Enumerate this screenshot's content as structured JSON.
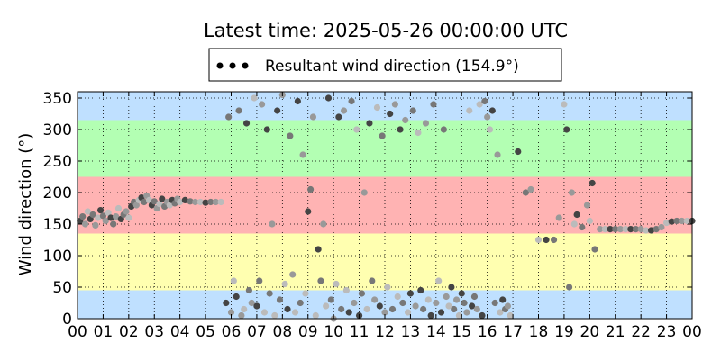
{
  "chart_data": {
    "type": "scatter",
    "title": "Latest time: 2025-05-26 00:00:00 UTC",
    "xlabel": "",
    "ylabel": "Wind direction (°)",
    "xlim": [
      0,
      24
    ],
    "ylim": [
      0,
      360
    ],
    "x_ticks": [
      "00",
      "01",
      "02",
      "03",
      "04",
      "05",
      "06",
      "07",
      "08",
      "09",
      "10",
      "11",
      "12",
      "13",
      "14",
      "15",
      "16",
      "17",
      "18",
      "19",
      "20",
      "21",
      "22",
      "23",
      "00"
    ],
    "y_ticks": [
      0,
      50,
      100,
      150,
      200,
      250,
      300,
      350
    ],
    "grid": true,
    "legend": {
      "position": "top-center",
      "entries": [
        "Resultant wind direction (154.9°)"
      ]
    },
    "background_bands": [
      {
        "from": 0,
        "to": 45,
        "color": "#bfe0ff"
      },
      {
        "from": 45,
        "to": 135,
        "color": "#ffffb0"
      },
      {
        "from": 135,
        "to": 225,
        "color": "#ffb3b3"
      },
      {
        "from": 225,
        "to": 315,
        "color": "#b3ffb3"
      },
      {
        "from": 315,
        "to": 360,
        "color": "#bfe0ff"
      }
    ],
    "series": [
      {
        "marker_colors": [
          "#444444",
          "#777777",
          "#999999",
          "#bbbbbb"
        ],
        "points": [
          [
            0.1,
            155
          ],
          [
            0.2,
            162
          ],
          [
            0.3,
            150
          ],
          [
            0.4,
            170
          ],
          [
            0.5,
            158
          ],
          [
            0.6,
            165
          ],
          [
            0.7,
            148
          ],
          [
            0.8,
            160
          ],
          [
            0.9,
            172
          ],
          [
            1.0,
            163
          ],
          [
            1.1,
            155
          ],
          [
            1.2,
            168
          ],
          [
            1.3,
            160
          ],
          [
            1.4,
            150
          ],
          [
            1.5,
            162
          ],
          [
            1.6,
            175
          ],
          [
            1.7,
            158
          ],
          [
            1.8,
            165
          ],
          [
            1.9,
            170
          ],
          [
            2.0,
            160
          ],
          [
            2.1,
            178
          ],
          [
            2.2,
            185
          ],
          [
            2.3,
            180
          ],
          [
            2.4,
            188
          ],
          [
            2.5,
            192
          ],
          [
            2.6,
            185
          ],
          [
            2.7,
            195
          ],
          [
            2.8,
            188
          ],
          [
            2.9,
            180
          ],
          [
            3.0,
            186
          ],
          [
            3.1,
            175
          ],
          [
            3.2,
            182
          ],
          [
            3.3,
            190
          ],
          [
            3.4,
            178
          ],
          [
            3.5,
            185
          ],
          [
            3.6,
            180
          ],
          [
            3.7,
            188
          ],
          [
            3.8,
            183
          ],
          [
            3.9,
            190
          ],
          [
            4.0,
            185
          ],
          [
            4.2,
            188
          ],
          [
            4.4,
            186
          ],
          [
            4.6,
            185
          ],
          [
            4.8,
            185
          ],
          [
            5.0,
            184
          ],
          [
            5.2,
            185
          ],
          [
            5.4,
            185
          ],
          [
            5.6,
            185
          ],
          [
            5.8,
            25
          ],
          [
            5.9,
            320
          ],
          [
            6.0,
            10
          ],
          [
            6.1,
            60
          ],
          [
            6.2,
            35
          ],
          [
            6.3,
            330
          ],
          [
            6.4,
            5
          ],
          [
            6.5,
            15
          ],
          [
            6.6,
            310
          ],
          [
            6.7,
            45
          ],
          [
            6.8,
            25
          ],
          [
            6.9,
            350
          ],
          [
            7.0,
            20
          ],
          [
            7.1,
            60
          ],
          [
            7.2,
            340
          ],
          [
            7.3,
            10
          ],
          [
            7.4,
            300
          ],
          [
            7.5,
            40
          ],
          [
            7.6,
            150
          ],
          [
            7.7,
            5
          ],
          [
            7.8,
            330
          ],
          [
            7.9,
            30
          ],
          [
            8.0,
            355
          ],
          [
            8.1,
            55
          ],
          [
            8.2,
            15
          ],
          [
            8.3,
            290
          ],
          [
            8.4,
            70
          ],
          [
            8.5,
            10
          ],
          [
            8.6,
            345
          ],
          [
            8.7,
            25
          ],
          [
            8.8,
            260
          ],
          [
            8.9,
            40
          ],
          [
            9.0,
            170
          ],
          [
            9.1,
            205
          ],
          [
            9.2,
            320
          ],
          [
            9.3,
            5
          ],
          [
            9.4,
            110
          ],
          [
            9.5,
            60
          ],
          [
            9.6,
            150
          ],
          [
            9.7,
            20
          ],
          [
            9.8,
            350
          ],
          [
            9.9,
            30
          ],
          [
            10.0,
            0
          ],
          [
            10.1,
            55
          ],
          [
            10.2,
            320
          ],
          [
            10.3,
            15
          ],
          [
            10.4,
            330
          ],
          [
            10.5,
            45
          ],
          [
            10.6,
            10
          ],
          [
            10.7,
            345
          ],
          [
            10.8,
            25
          ],
          [
            10.9,
            300
          ],
          [
            11.0,
            5
          ],
          [
            11.1,
            40
          ],
          [
            11.2,
            200
          ],
          [
            11.3,
            15
          ],
          [
            11.4,
            310
          ],
          [
            11.5,
            60
          ],
          [
            11.6,
            30
          ],
          [
            11.7,
            335
          ],
          [
            11.8,
            20
          ],
          [
            11.9,
            290
          ],
          [
            12.0,
            10
          ],
          [
            12.1,
            50
          ],
          [
            12.2,
            325
          ],
          [
            12.3,
            15
          ],
          [
            12.4,
            340
          ],
          [
            12.5,
            35
          ],
          [
            12.6,
            300
          ],
          [
            12.7,
            25
          ],
          [
            12.8,
            315
          ],
          [
            12.9,
            10
          ],
          [
            13.0,
            40
          ],
          [
            13.1,
            330
          ],
          [
            13.2,
            20
          ],
          [
            13.3,
            295
          ],
          [
            13.4,
            45
          ],
          [
            13.5,
            15
          ],
          [
            13.6,
            310
          ],
          [
            13.7,
            30
          ],
          [
            13.8,
            5
          ],
          [
            13.9,
            340
          ],
          [
            14.0,
            25
          ],
          [
            14.1,
            60
          ],
          [
            14.2,
            10
          ],
          [
            14.3,
            300
          ],
          [
            14.4,
            35
          ],
          [
            14.5,
            20
          ],
          [
            14.6,
            50
          ],
          [
            14.7,
            15
          ],
          [
            14.8,
            30
          ],
          [
            14.9,
            5
          ],
          [
            15.0,
            40
          ],
          [
            15.1,
            25
          ],
          [
            15.2,
            10
          ],
          [
            15.3,
            330
          ],
          [
            15.4,
            20
          ],
          [
            15.5,
            35
          ],
          [
            15.6,
            15
          ],
          [
            15.7,
            340
          ],
          [
            15.8,
            5
          ],
          [
            15.9,
            345
          ],
          [
            16.0,
            320
          ],
          [
            16.1,
            300
          ],
          [
            16.2,
            330
          ],
          [
            16.3,
            25
          ],
          [
            16.4,
            260
          ],
          [
            16.5,
            10
          ],
          [
            16.6,
            30
          ],
          [
            16.7,
            15
          ],
          [
            16.8,
            20
          ],
          [
            16.9,
            5
          ],
          [
            17.2,
            265
          ],
          [
            17.5,
            200
          ],
          [
            17.7,
            205
          ],
          [
            18.0,
            125
          ],
          [
            18.3,
            125
          ],
          [
            18.6,
            125
          ],
          [
            18.8,
            160
          ],
          [
            19.0,
            340
          ],
          [
            19.1,
            300
          ],
          [
            19.2,
            50
          ],
          [
            19.3,
            200
          ],
          [
            19.4,
            150
          ],
          [
            19.5,
            165
          ],
          [
            19.7,
            145
          ],
          [
            19.9,
            180
          ],
          [
            20.0,
            155
          ],
          [
            20.1,
            215
          ],
          [
            20.2,
            110
          ],
          [
            20.4,
            142
          ],
          [
            20.6,
            142
          ],
          [
            20.8,
            142
          ],
          [
            21.0,
            142
          ],
          [
            21.2,
            142
          ],
          [
            21.4,
            142
          ],
          [
            21.6,
            142
          ],
          [
            21.8,
            142
          ],
          [
            22.0,
            142
          ],
          [
            22.2,
            140
          ],
          [
            22.4,
            140
          ],
          [
            22.6,
            142
          ],
          [
            22.8,
            145
          ],
          [
            23.0,
            152
          ],
          [
            23.2,
            154
          ],
          [
            23.4,
            155
          ],
          [
            23.6,
            155
          ],
          [
            23.8,
            155
          ],
          [
            24.0,
            155
          ]
        ]
      }
    ]
  }
}
